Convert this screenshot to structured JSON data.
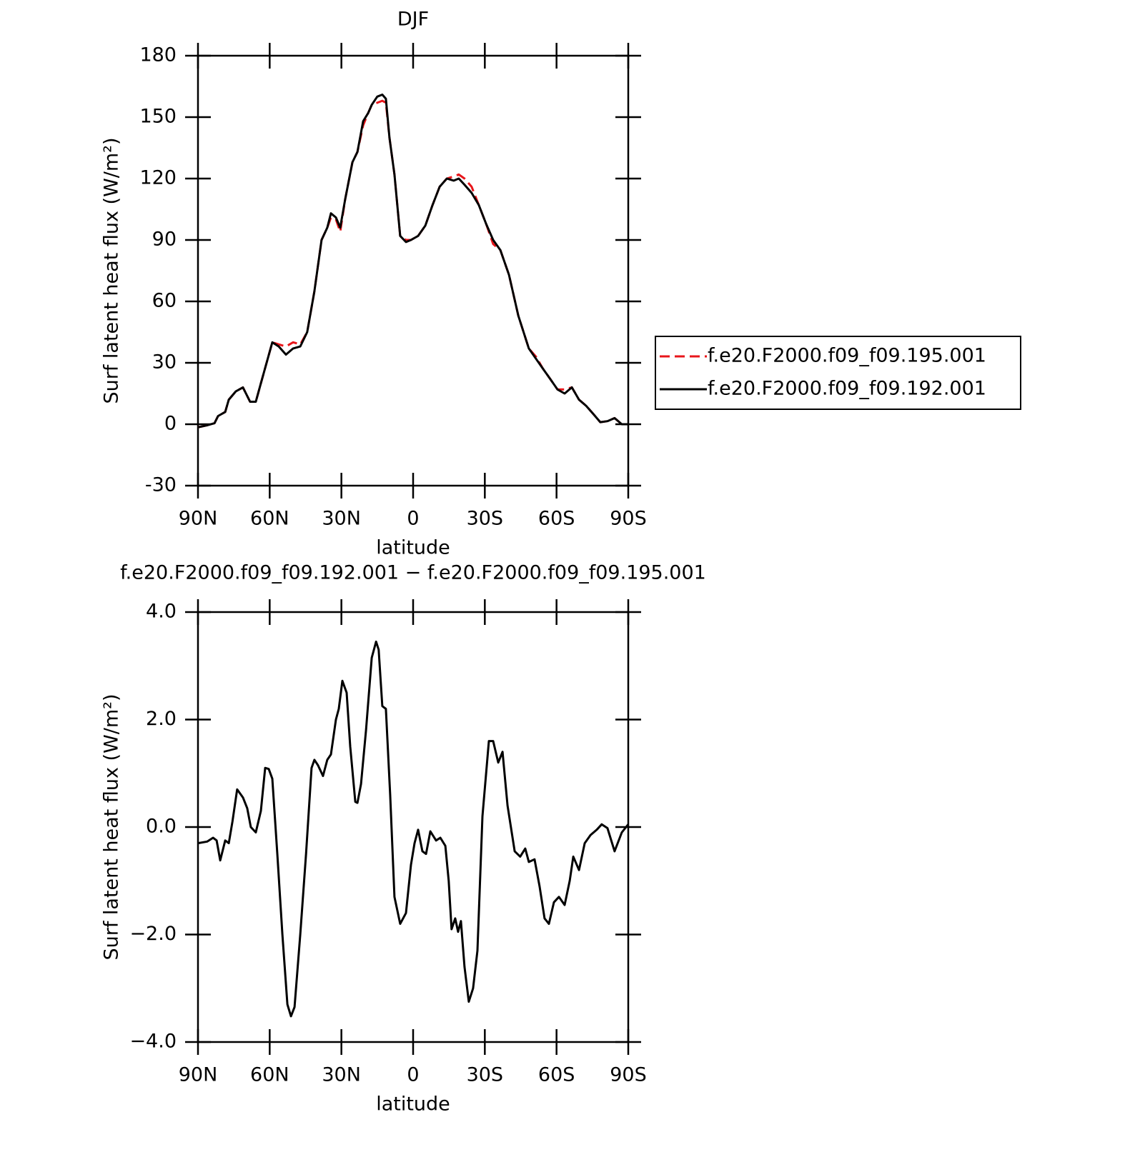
{
  "chart_data": [
    {
      "type": "line",
      "title": "DJF",
      "xlabel": "latitude",
      "ylabel": "Surf latent heat flux (W/m²)",
      "x": [
        90,
        86.1,
        83.1,
        81.6,
        78.6,
        77.1,
        74.2,
        71.2,
        68.2,
        65.8,
        63.7,
        61.3,
        58.9,
        56.2,
        53.2,
        50.2,
        47.2,
        44.3,
        41.3,
        38.3,
        35.9,
        34.4,
        32.3,
        30.5,
        28.4,
        25.4,
        23.3,
        20.9,
        18.8,
        17.3,
        15,
        12.9,
        11.4,
        9.9,
        7.8,
        5.4,
        3,
        0.9,
        -2.1,
        -5.1,
        -8.1,
        -11.1,
        -14.1,
        -17,
        -19.1,
        -21.5,
        -24.5,
        -27.5,
        -30.5,
        -33.5,
        -36.5,
        -40.1,
        -44,
        -48.4,
        -51.4,
        -54.4,
        -57.4,
        -60.4,
        -63.4,
        -66.4,
        -69.4,
        -72.4,
        -75.4,
        -78.3,
        -81.3,
        -84.3,
        -87.3,
        -90
      ],
      "series": [
        {
          "name": "f.e20.F2000.f09_f09.195.001",
          "color": "#e8161b",
          "dash": true,
          "values": [
            -1.5,
            -0.5,
            0.5,
            4,
            6,
            12,
            16,
            18,
            11,
            11,
            20,
            30,
            40,
            39,
            38,
            40,
            39,
            45,
            65,
            90,
            96,
            101,
            100,
            94,
            110,
            128,
            133,
            146,
            152,
            156,
            157,
            158,
            157,
            140,
            122,
            92,
            90,
            90,
            92,
            97,
            107,
            116,
            120,
            121,
            122,
            120,
            116,
            107,
            98,
            88,
            85,
            73,
            53,
            37,
            33,
            27,
            22,
            17,
            17,
            18,
            12,
            9,
            5,
            1,
            1.5,
            3,
            0,
            0
          ]
        },
        {
          "name": "f.e20.F2000.f09_f09.192.001",
          "color": "#000000",
          "dash": false,
          "values": [
            -1.5,
            -0.5,
            0.5,
            4,
            6,
            12,
            16,
            18,
            11,
            11,
            20,
            30,
            40,
            38,
            34,
            37,
            38,
            45,
            65,
            90,
            96,
            103,
            101,
            96,
            110,
            128,
            133,
            148,
            152,
            156,
            160,
            161,
            159,
            140,
            122,
            92,
            89,
            90,
            92,
            97,
            107,
            116,
            120,
            119,
            120,
            117,
            113,
            107,
            98,
            90,
            85,
            73,
            53,
            37,
            32,
            27,
            22,
            17,
            15,
            18,
            12,
            9,
            5,
            1,
            1.5,
            3,
            0,
            0
          ]
        }
      ],
      "xlim": [
        90,
        -90
      ],
      "xticks": [
        {
          "value": 90,
          "label": "90N"
        },
        {
          "value": 60,
          "label": "60N"
        },
        {
          "value": 30,
          "label": "30N"
        },
        0,
        {
          "value": -30,
          "label": "30S"
        },
        {
          "value": -60,
          "label": "60S"
        },
        {
          "value": -90,
          "label": "90S"
        }
      ],
      "ylim": [
        -30,
        180
      ],
      "yticks": [
        -30,
        0,
        30,
        60,
        90,
        120,
        150,
        180
      ],
      "legend": "right",
      "grid": false
    },
    {
      "type": "line",
      "title": "f.e20.F2000.f09_f09.192.001 − f.e20.F2000.f09_f09.195.001",
      "xlabel": "latitude",
      "ylabel": "Surf latent heat flux (W/m²)",
      "x": [
        90,
        86.1,
        83.7,
        82.2,
        80.7,
        78.6,
        77.1,
        75.6,
        73.6,
        71.2,
        69.4,
        67.9,
        65.8,
        63.7,
        61.9,
        60.4,
        58.9,
        56.8,
        54.7,
        52.6,
        51.1,
        49.6,
        47.2,
        44.8,
        42.5,
        41.3,
        39.8,
        37.7,
        35.9,
        34.4,
        32.3,
        31.1,
        29.6,
        27.8,
        26.3,
        24.2,
        23.3,
        21.8,
        19.7,
        17.3,
        15.5,
        14.4,
        12.9,
        11.4,
        9.6,
        7.8,
        5.4,
        3.0,
        0.9,
        -0.6,
        -2.1,
        -3.9,
        -5.4,
        -7.2,
        -9.6,
        -11.4,
        -13.5,
        -14.9,
        -16.1,
        -17.6,
        -18.8,
        -20.0,
        -21.5,
        -23.3,
        -25.1,
        -26.9,
        -29.0,
        -31.7,
        -33.5,
        -35.6,
        -37.4,
        -39.5,
        -42.5,
        -44.8,
        -46.9,
        -48.4,
        -50.8,
        -52.9,
        -55.0,
        -56.8,
        -58.9,
        -61.0,
        -63.4,
        -65.5,
        -67.0,
        -69.4,
        -71.8,
        -74.2,
        -76.8,
        -78.9,
        -81.3,
        -84.3,
        -87.3,
        -90
      ],
      "series": [
        {
          "name": "f.e20.F2000.f09_f09.192.001 − f.e20.F2000.f09_f09.195.001",
          "color": "#000000",
          "dash": false,
          "values": [
            -0.3,
            -0.27,
            -0.2,
            -0.25,
            -0.62,
            -0.25,
            -0.3,
            0.1,
            0.7,
            0.55,
            0.35,
            0.0,
            -0.1,
            0.3,
            1.1,
            1.08,
            0.9,
            -0.5,
            -2.0,
            -3.3,
            -3.52,
            -3.35,
            -2.0,
            -0.5,
            1.1,
            1.25,
            1.15,
            0.95,
            1.25,
            1.35,
            2.0,
            2.2,
            2.72,
            2.5,
            1.5,
            0.47,
            0.45,
            0.8,
            1.8,
            3.15,
            3.45,
            3.3,
            2.25,
            2.2,
            0.6,
            -1.3,
            -1.8,
            -1.6,
            -0.7,
            -0.3,
            -0.05,
            -0.45,
            -0.5,
            -0.08,
            -0.25,
            -0.2,
            -0.35,
            -1.0,
            -1.9,
            -1.7,
            -1.95,
            -1.75,
            -2.6,
            -3.25,
            -3.0,
            -2.3,
            0.2,
            1.6,
            1.6,
            1.2,
            1.4,
            0.4,
            -0.45,
            -0.55,
            -0.4,
            -0.65,
            -0.6,
            -1.1,
            -1.7,
            -1.8,
            -1.4,
            -1.3,
            -1.45,
            -1.0,
            -0.55,
            -0.8,
            -0.3,
            -0.15,
            -0.05,
            0.05,
            -0.02,
            -0.45,
            -0.1,
            0.05
          ]
        }
      ],
      "xlim": [
        90,
        -90
      ],
      "xticks": [
        {
          "value": 90,
          "label": "90N"
        },
        {
          "value": 60,
          "label": "60N"
        },
        {
          "value": 30,
          "label": "30N"
        },
        0,
        {
          "value": -30,
          "label": "30S"
        },
        {
          "value": -60,
          "label": "60S"
        },
        {
          "value": -90,
          "label": "90S"
        }
      ],
      "ylim": [
        -4,
        4
      ],
      "yticks": [
        {
          "value": -4,
          "label": "−4.0"
        },
        {
          "value": -2,
          "label": "−2.0"
        },
        {
          "value": 0,
          "label": "0.0"
        },
        {
          "value": 2,
          "label": "2.0"
        },
        {
          "value": 4,
          "label": "4.0"
        }
      ],
      "grid": false
    }
  ]
}
